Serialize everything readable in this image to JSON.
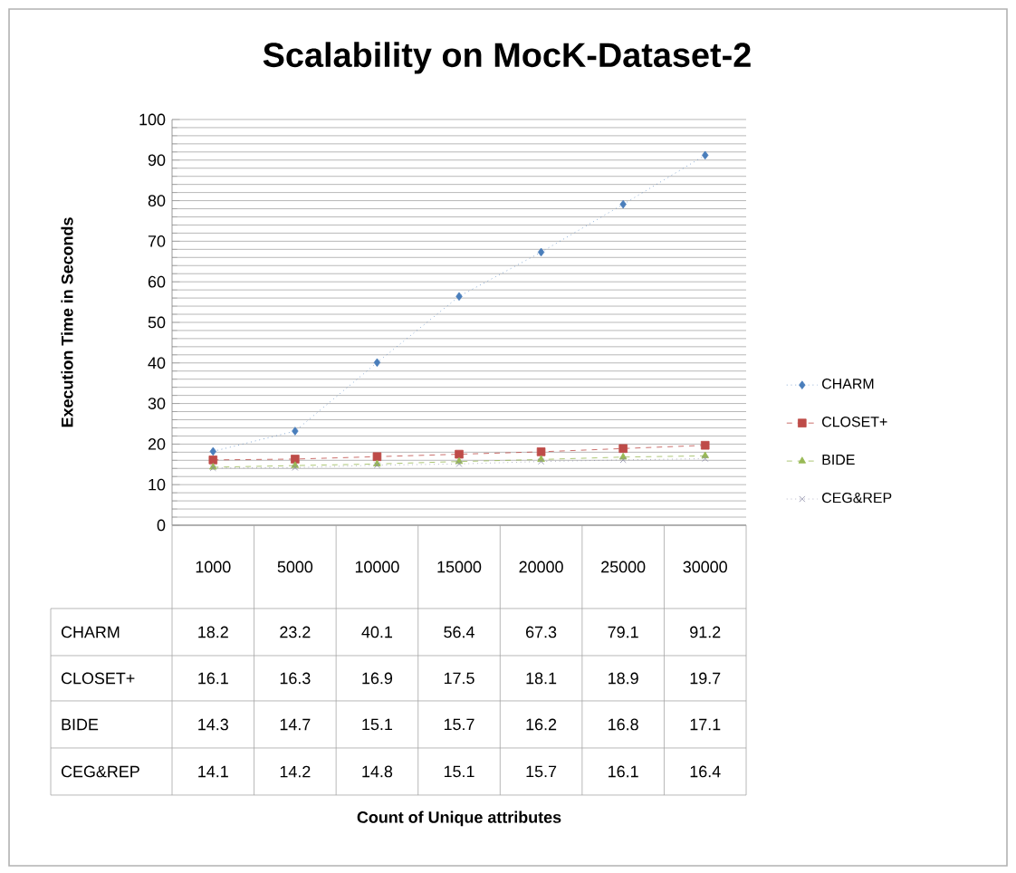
{
  "chart_data": {
    "type": "line",
    "title": "Scalability on MocK-Dataset-2",
    "annotations": [
      "Count of Unique attributes"
    ],
    "ylabel": "Execution Time  in Seconds",
    "categories": [
      "1000",
      "5000",
      "10000",
      "15000",
      "20000",
      "25000",
      "30000"
    ],
    "series": [
      {
        "name": "CHARM",
        "color": "#4a7ebb",
        "marker": "diamond",
        "line_style": "dotted",
        "values": [
          18.2,
          23.2,
          40.1,
          56.4,
          67.3,
          79.1,
          91.2
        ]
      },
      {
        "name": "CLOSET+",
        "color": "#be4b48",
        "marker": "square",
        "line_style": "dashed",
        "values": [
          16.1,
          16.3,
          16.9,
          17.5,
          18.1,
          18.9,
          19.7
        ]
      },
      {
        "name": "BIDE",
        "color": "#98b954",
        "marker": "triangle",
        "line_style": "dashed",
        "values": [
          14.3,
          14.7,
          15.1,
          15.7,
          16.2,
          16.8,
          17.1
        ]
      },
      {
        "name": "CEG&REP",
        "color": "#8a8aa6",
        "marker": "cross",
        "line_style": "dotted",
        "values": [
          14.1,
          14.2,
          14.8,
          15.1,
          15.7,
          16.1,
          16.4
        ]
      }
    ],
    "ylim": [
      0,
      100
    ],
    "yticks": [
      0,
      10,
      20,
      30,
      40,
      50,
      60,
      70,
      80,
      90,
      100
    ],
    "grid": "y",
    "legend": "right",
    "data_labels": true
  }
}
